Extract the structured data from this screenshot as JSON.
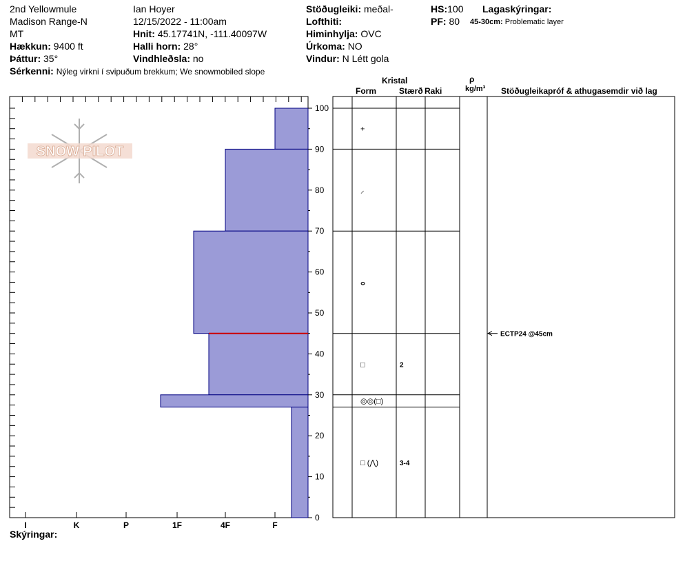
{
  "header": {
    "location_line1": "2nd Yellowmule",
    "location_line2": "Madison Range-N",
    "location_line3": "MT",
    "elevation_label": "Hækkun:",
    "elevation_value": "9400 ft",
    "aspect_label": "Þáttur:",
    "aspect_value": "35°",
    "observer": "Ian Hoyer",
    "datetime": "12/15/2022 - 11:00am",
    "coords_label": "Hnit:",
    "coords_value": "45.17741N, -111.40097W",
    "slope_label": "Halli horn:",
    "slope_value": "28°",
    "wind_loading_label": "Vindhleðsla:",
    "wind_loading_value": "no",
    "stability_label": "Stöðugleiki:",
    "stability_value": "meðal-",
    "air_temp_label": "Lofthiti:",
    "air_temp_value": "",
    "sky_label": "Himinhylja:",
    "sky_value": "OVC",
    "precip_label": "Úrkoma:",
    "precip_value": "NO",
    "wind_label": "Vindur:",
    "wind_value": "N Létt gola",
    "hs_label": "HS:",
    "hs_value": "100",
    "pf_label": "PF:",
    "pf_value": "80",
    "layer_notes_label": "Lagaskýringar:",
    "layer_note_range": "45-30cm:",
    "layer_note_text": "Problematic layer",
    "features_label": "Sérkenni:",
    "features_value": "Nýleg virkni í svipuðum brekkum; We snowmobiled slope",
    "notes_label": "Skýringar:"
  },
  "columns": {
    "crystal": "Kristal",
    "form": "Form",
    "size": "Stærð",
    "moisture": "Raki",
    "density_symbol": "ρ",
    "density_unit": "kg/m³",
    "tests": "Stöðugleikapróf & athugasemdir við lag"
  },
  "logo": {
    "text": "SNOW PILOT"
  },
  "colors": {
    "bars": "#9b9bd7",
    "bar_edge": "#000080",
    "problem_line": "#cc0000"
  },
  "chart_data": {
    "type": "bar",
    "orientation": "horizontal",
    "title": "",
    "ylim": [
      0,
      100
    ],
    "y_ticks": [
      0,
      10,
      20,
      30,
      40,
      50,
      60,
      70,
      80,
      90,
      100
    ],
    "x_categories": [
      "I",
      "K",
      "P",
      "1F",
      "4F",
      "F"
    ],
    "layers": [
      {
        "bottom": 90,
        "top": 100,
        "hardness": "F"
      },
      {
        "bottom": 70,
        "top": 90,
        "hardness": "4F"
      },
      {
        "bottom": 45,
        "top": 70,
        "hardness": "1F+"
      },
      {
        "bottom": 30,
        "top": 45,
        "hardness": "4F-"
      },
      {
        "bottom": 27,
        "top": 30,
        "hardness": "1F-"
      },
      {
        "bottom": 0,
        "top": 27,
        "hardness": "F+"
      }
    ],
    "problem_boundary": 45,
    "crystals": [
      {
        "height": 95,
        "form": "+",
        "size": ""
      },
      {
        "height": 80,
        "form": "⸝",
        "size": ""
      },
      {
        "height": 57.5,
        "form": "ⴰ",
        "size": ""
      },
      {
        "height": 37.5,
        "form": "□",
        "size": "2"
      },
      {
        "height": 28.5,
        "form": "◎◎(□)",
        "size": ""
      },
      {
        "height": 13.5,
        "form": "□ (⋀)",
        "size": "3-4"
      }
    ],
    "tests": [
      {
        "height": 45,
        "text": "ECTP24 @45cm"
      }
    ]
  }
}
